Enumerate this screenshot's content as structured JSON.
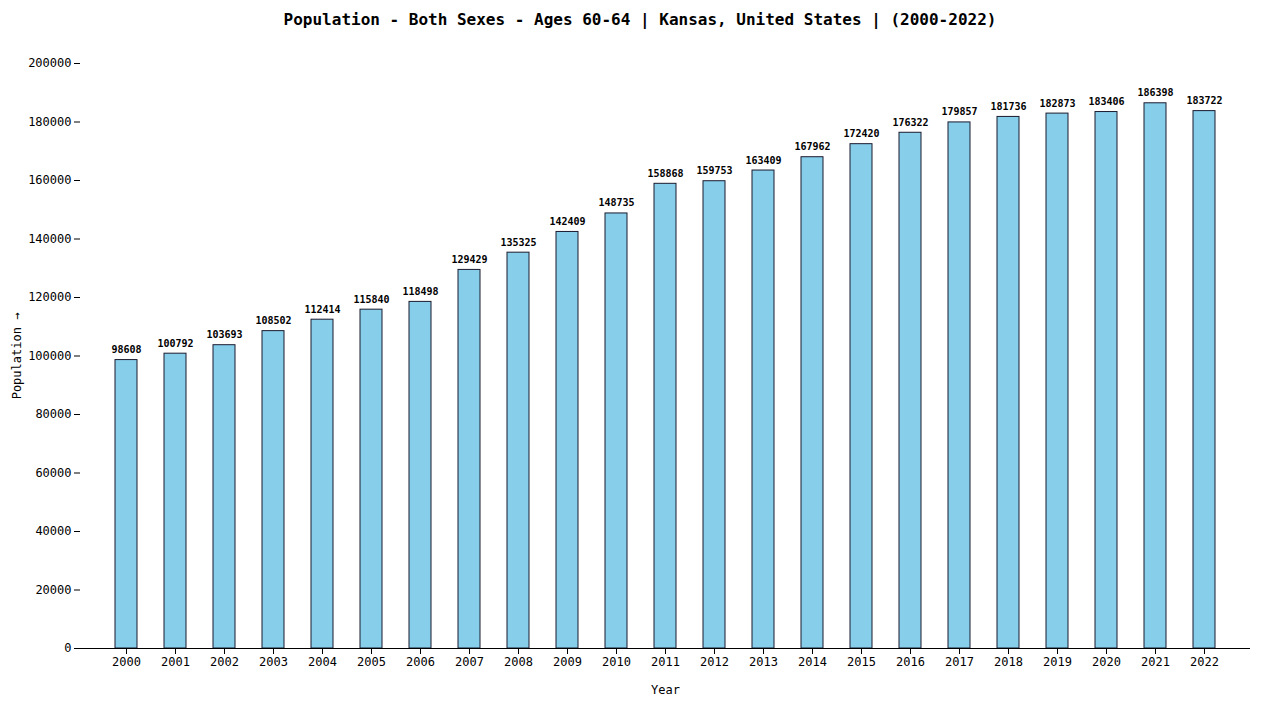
{
  "chart_data": {
    "type": "bar",
    "title": "Population - Both Sexes - Ages 60-64 | Kansas, United States |  (2000-2022)",
    "xlabel": "Year",
    "ylabel": "Population",
    "categories": [
      "2000",
      "2001",
      "2002",
      "2003",
      "2004",
      "2005",
      "2006",
      "2007",
      "2008",
      "2009",
      "2010",
      "2011",
      "2012",
      "2013",
      "2014",
      "2015",
      "2016",
      "2017",
      "2018",
      "2019",
      "2020",
      "2021",
      "2022"
    ],
    "values": [
      98608,
      100792,
      103693,
      108502,
      112414,
      115840,
      118498,
      129429,
      135325,
      142409,
      148735,
      158868,
      159753,
      163409,
      167962,
      172420,
      176322,
      179857,
      181736,
      182873,
      183406,
      186398,
      183722
    ],
    "color": "#87CEEB",
    "ylim": [
      0,
      200000
    ],
    "yticks": [
      0,
      20000,
      40000,
      60000,
      80000,
      100000,
      120000,
      140000,
      160000,
      180000,
      200000
    ],
    "grid": false,
    "data_labels": true
  }
}
